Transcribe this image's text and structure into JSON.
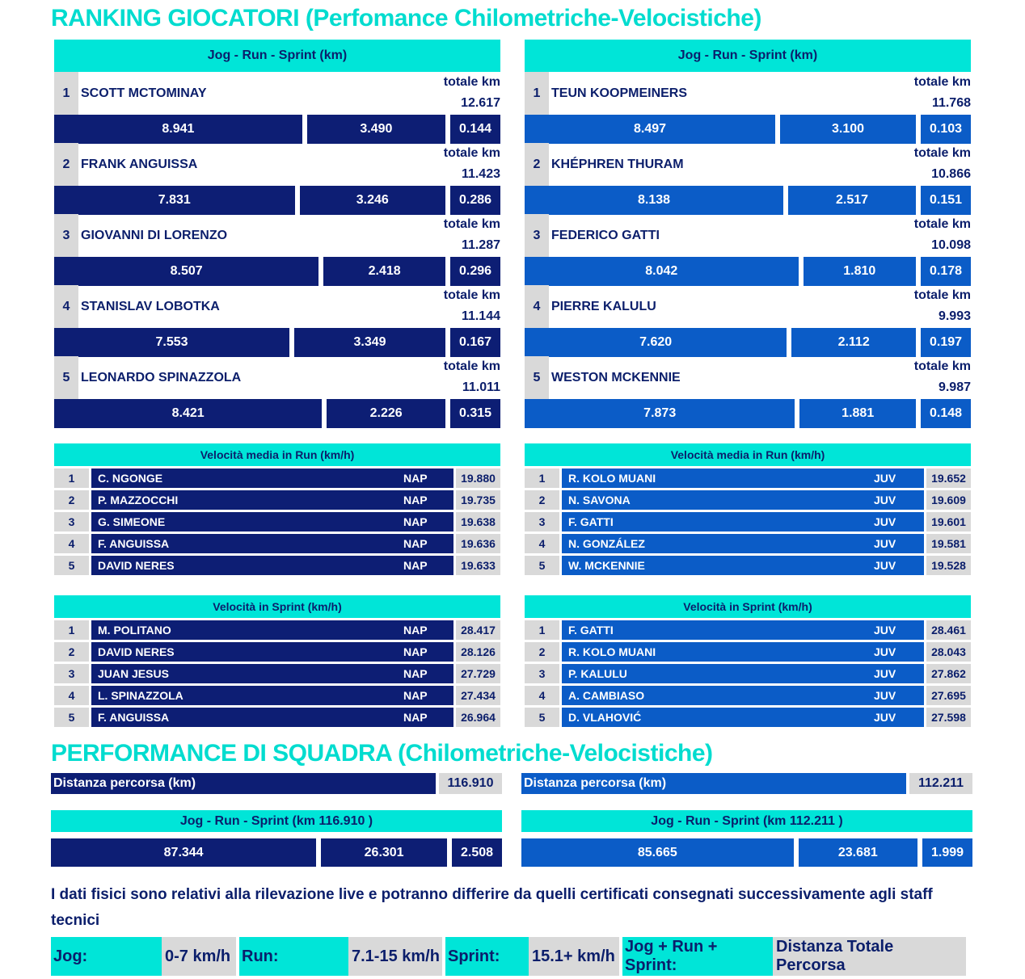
{
  "title": "RANKING GIOCATORI (Perfomance Chilometriche-Velocistiche)",
  "team_title": "PERFORMANCE DI SQUADRA (Chilometriche-Velocistiche)",
  "colors": {
    "cyan": "#00e5d8",
    "navy": "#0d1e74",
    "blue": "#0b5cc7",
    "gray": "#d9d9d9"
  },
  "totale_label": "totale km",
  "rankings": [
    {
      "header": "Jog - Run - Sprint (km)",
      "players": [
        {
          "rank": "1",
          "name": "SCOTT MCTOMINAY",
          "total": "12.617",
          "jog": "8.941",
          "run": "3.490",
          "sprint": "0.144"
        },
        {
          "rank": "2",
          "name": "FRANK ANGUISSA",
          "total": "11.423",
          "jog": "7.831",
          "run": "3.246",
          "sprint": "0.286"
        },
        {
          "rank": "3",
          "name": "GIOVANNI DI LORENZO",
          "total": "11.287",
          "jog": "8.507",
          "run": "2.418",
          "sprint": "0.296"
        },
        {
          "rank": "4",
          "name": "STANISLAV LOBOTKA",
          "total": "11.144",
          "jog": "7.553",
          "run": "3.349",
          "sprint": "0.167"
        },
        {
          "rank": "5",
          "name": "LEONARDO SPINAZZOLA",
          "total": "11.011",
          "jog": "8.421",
          "run": "2.226",
          "sprint": "0.315"
        }
      ]
    },
    {
      "header": "Jog - Run - Sprint (km)",
      "players": [
        {
          "rank": "1",
          "name": "TEUN KOOPMEINERS",
          "total": "11.768",
          "jog": "8.497",
          "run": "3.100",
          "sprint": "0.103"
        },
        {
          "rank": "2",
          "name": "KHÉPHREN THURAM",
          "total": "10.866",
          "jog": "8.138",
          "run": "2.517",
          "sprint": "0.151"
        },
        {
          "rank": "3",
          "name": "FEDERICO GATTI",
          "total": "10.098",
          "jog": "8.042",
          "run": "1.810",
          "sprint": "0.178"
        },
        {
          "rank": "4",
          "name": "PIERRE KALULU",
          "total": "9.993",
          "jog": "7.620",
          "run": "2.112",
          "sprint": "0.197"
        },
        {
          "rank": "5",
          "name": "WESTON MCKENNIE",
          "total": "9.987",
          "jog": "7.873",
          "run": "1.881",
          "sprint": "0.148"
        }
      ]
    }
  ],
  "run_speed": [
    {
      "header": "Velocità media in Run (km/h)",
      "rows": [
        {
          "rank": "1",
          "name": "C. NGONGE",
          "team": "NAP",
          "value": "19.880"
        },
        {
          "rank": "2",
          "name": "P. MAZZOCCHI",
          "team": "NAP",
          "value": "19.735"
        },
        {
          "rank": "3",
          "name": "G. SIMEONE",
          "team": "NAP",
          "value": "19.638"
        },
        {
          "rank": "4",
          "name": "F. ANGUISSA",
          "team": "NAP",
          "value": "19.636"
        },
        {
          "rank": "5",
          "name": "DAVID NERES",
          "team": "NAP",
          "value": "19.633"
        }
      ]
    },
    {
      "header": "Velocità media in Run (km/h)",
      "rows": [
        {
          "rank": "1",
          "name": "R. KOLO MUANI",
          "team": "JUV",
          "value": "19.652"
        },
        {
          "rank": "2",
          "name": "N. SAVONA",
          "team": "JUV",
          "value": "19.609"
        },
        {
          "rank": "3",
          "name": "F. GATTI",
          "team": "JUV",
          "value": "19.601"
        },
        {
          "rank": "4",
          "name": "N. GONZÁLEZ",
          "team": "JUV",
          "value": "19.581"
        },
        {
          "rank": "5",
          "name": "W. MCKENNIE",
          "team": "JUV",
          "value": "19.528"
        }
      ]
    }
  ],
  "sprint_speed": [
    {
      "header": "Velocità in Sprint (km/h)",
      "rows": [
        {
          "rank": "1",
          "name": "M. POLITANO",
          "team": "NAP",
          "value": "28.417"
        },
        {
          "rank": "2",
          "name": "DAVID NERES",
          "team": "NAP",
          "value": "28.126"
        },
        {
          "rank": "3",
          "name": "JUAN JESUS",
          "team": "NAP",
          "value": "27.729"
        },
        {
          "rank": "4",
          "name": "L. SPINAZZOLA",
          "team": "NAP",
          "value": "27.434"
        },
        {
          "rank": "5",
          "name": "F. ANGUISSA",
          "team": "NAP",
          "value": "26.964"
        }
      ]
    },
    {
      "header": "Velocità in Sprint (km/h)",
      "rows": [
        {
          "rank": "1",
          "name": "F. GATTI",
          "team": "JUV",
          "value": "28.461"
        },
        {
          "rank": "2",
          "name": "R. KOLO MUANI",
          "team": "JUV",
          "value": "28.043"
        },
        {
          "rank": "3",
          "name": "P. KALULU",
          "team": "JUV",
          "value": "27.862"
        },
        {
          "rank": "4",
          "name": "A. CAMBIASO",
          "team": "JUV",
          "value": "27.695"
        },
        {
          "rank": "5",
          "name": "D. VLAHOVIĆ",
          "team": "JUV",
          "value": "27.598"
        }
      ]
    }
  ],
  "teams": [
    {
      "distance_label": "Distanza percorsa (km)",
      "distance": "116.910",
      "header": "Jog - Run - Sprint (km 116.910 )",
      "jog": "87.344",
      "run": "26.301",
      "sprint": "2.508"
    },
    {
      "distance_label": "Distanza percorsa (km)",
      "distance": "112.211",
      "header": "Jog - Run - Sprint (km 112.211 )",
      "jog": "85.665",
      "run": "23.681",
      "sprint": "1.999"
    }
  ],
  "note": "I dati fisici sono relativi alla rilevazione live e potranno differire da quelli certificati consegnati successivamente agli staff tecnici",
  "legend": [
    {
      "key": "Jog:",
      "value": "0-7 km/h"
    },
    {
      "key": "Run:",
      "value": "7.1-15 km/h"
    },
    {
      "key": "Sprint:",
      "value": "15.1+ km/h"
    },
    {
      "key": "Jog + Run + Sprint:",
      "value": "Distanza Totale Percorsa"
    }
  ]
}
